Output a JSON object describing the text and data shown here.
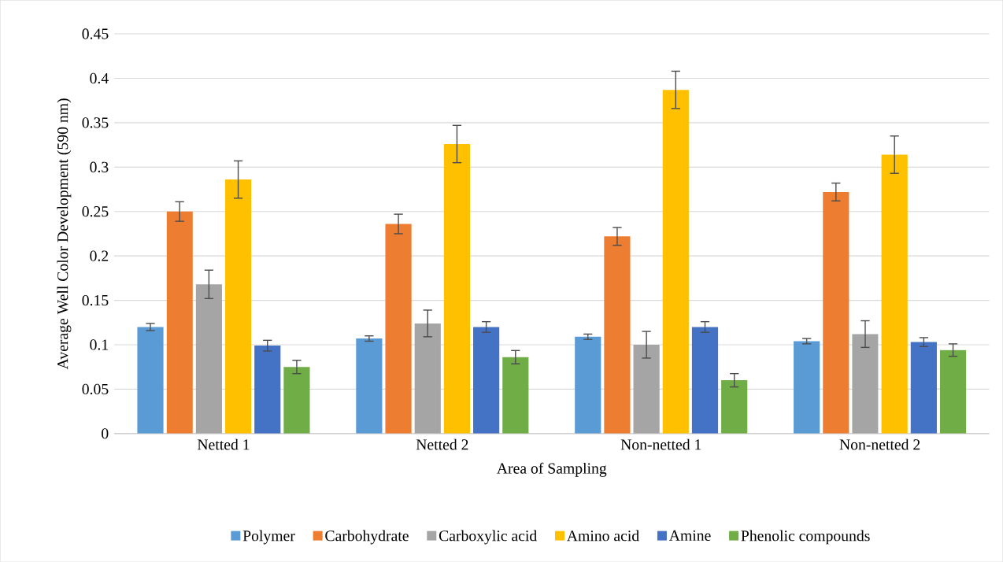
{
  "chart_data": {
    "type": "bar",
    "xlabel": "Area of Sampling",
    "ylabel": "Average Well Color Development (590 nm)",
    "categories": [
      "Netted 1",
      "Netted 2",
      "Non-netted 1",
      "Non-netted 2"
    ],
    "series": [
      {
        "name": "Polymer",
        "color": "#5b9bd5",
        "values": [
          0.12,
          0.107,
          0.109,
          0.104
        ],
        "errors": [
          0.004,
          0.003,
          0.003,
          0.003
        ]
      },
      {
        "name": "Carbohydrate",
        "color": "#ed7d31",
        "values": [
          0.25,
          0.236,
          0.222,
          0.272
        ],
        "errors": [
          0.011,
          0.011,
          0.01,
          0.01
        ]
      },
      {
        "name": "Carboxylic acid",
        "color": "#a5a5a5",
        "values": [
          0.168,
          0.124,
          0.1,
          0.112
        ],
        "errors": [
          0.016,
          0.015,
          0.015,
          0.015
        ]
      },
      {
        "name": "Amino acid",
        "color": "#ffc000",
        "values": [
          0.286,
          0.326,
          0.387,
          0.314
        ],
        "errors": [
          0.021,
          0.021,
          0.021,
          0.021
        ]
      },
      {
        "name": "Amine",
        "color": "#4472c4",
        "values": [
          0.099,
          0.12,
          0.12,
          0.103
        ],
        "errors": [
          0.006,
          0.006,
          0.006,
          0.005
        ]
      },
      {
        "name": "Phenolic compounds",
        "color": "#70ad47",
        "values": [
          0.075,
          0.086,
          0.06,
          0.094
        ],
        "errors": [
          0.0075,
          0.0075,
          0.0075,
          0.007
        ]
      }
    ],
    "ylim": [
      0,
      0.45
    ],
    "yticks": [
      0,
      0.05,
      0.1,
      0.15,
      0.2,
      0.25,
      0.3,
      0.35,
      0.4,
      0.45
    ],
    "grid": "y",
    "legend": "bottom"
  }
}
